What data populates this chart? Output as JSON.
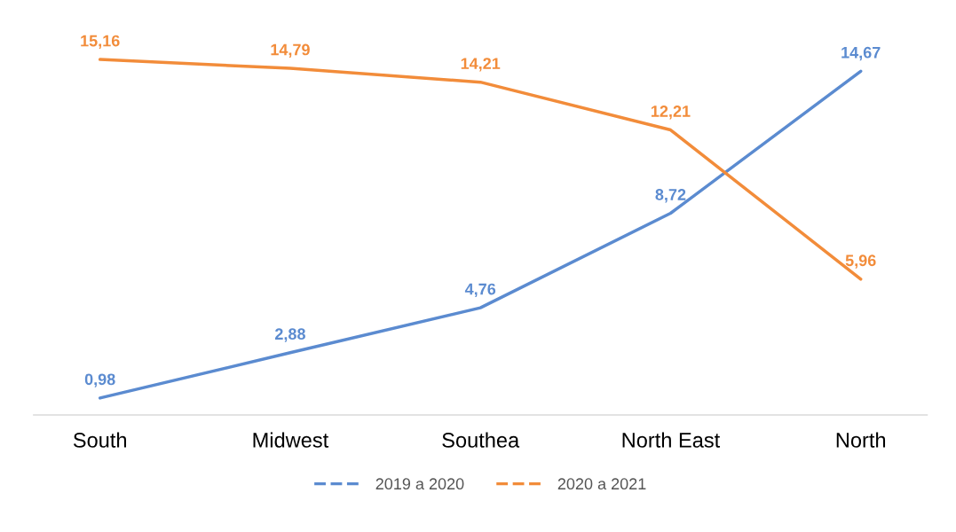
{
  "chart_data": {
    "type": "line",
    "categories": [
      "South",
      "Midwest",
      "Southea",
      "North East",
      "North"
    ],
    "series": [
      {
        "name": "2019 a 2020",
        "color": "#5b8bd0",
        "values": [
          0.98,
          2.88,
          4.76,
          8.72,
          14.67
        ],
        "value_labels": [
          "0,98",
          "2,88",
          "4,76",
          "8,72",
          "14,67"
        ]
      },
      {
        "name": "2020 a 2021",
        "color": "#f28c3a",
        "values": [
          15.16,
          14.79,
          14.21,
          12.21,
          5.96
        ],
        "value_labels": [
          "15,16",
          "14,79",
          "14,21",
          "12,21",
          "5,96"
        ]
      }
    ],
    "tick_labels": "x",
    "grid": false,
    "legend": "bottom",
    "line_style": "solid"
  }
}
